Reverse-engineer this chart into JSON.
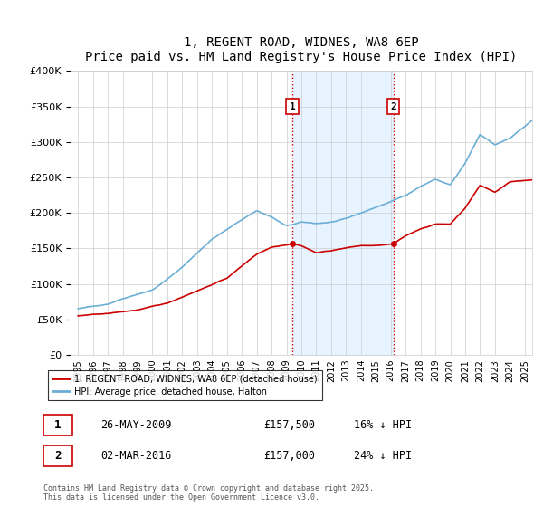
{
  "title": "1, REGENT ROAD, WIDNES, WA8 6EP",
  "subtitle": "Price paid vs. HM Land Registry's House Price Index (HPI)",
  "ylabel_ticks": [
    "£0",
    "£50K",
    "£100K",
    "£150K",
    "£200K",
    "£250K",
    "£300K",
    "£350K",
    "£400K"
  ],
  "ylim": [
    0,
    400000
  ],
  "xlim_start": 1995,
  "xlim_end": 2025.5,
  "x_ticks": [
    1995,
    1996,
    1997,
    1998,
    1999,
    2000,
    2001,
    2002,
    2003,
    2004,
    2005,
    2006,
    2007,
    2008,
    2009,
    2010,
    2011,
    2012,
    2013,
    2014,
    2015,
    2016,
    2017,
    2018,
    2019,
    2020,
    2021,
    2022,
    2023,
    2024,
    2025
  ],
  "hpi_color": "#6baed6",
  "price_color": "#cc0000",
  "sale1_x": 2009.4,
  "sale1_price": 157500,
  "sale1_label": "1",
  "sale2_x": 2016.17,
  "sale2_price": 157000,
  "sale2_label": "2",
  "shaded_color": "#ddeeff",
  "vline_color": "#cc0000",
  "legend_label1": "1, REGENT ROAD, WIDNES, WA8 6EP (detached house)",
  "legend_label2": "HPI: Average price, detached house, Halton",
  "annotation1_date": "26-MAY-2009",
  "annotation1_price": "£157,500",
  "annotation1_hpi": "16% ↓ HPI",
  "annotation2_date": "02-MAR-2016",
  "annotation2_price": "£157,000",
  "annotation2_hpi": "24% ↓ HPI",
  "footnote": "Contains HM Land Registry data © Crown copyright and database right 2025.\nThis data is licensed under the Open Government Licence v3.0.",
  "background_color": "#f5f5f5"
}
